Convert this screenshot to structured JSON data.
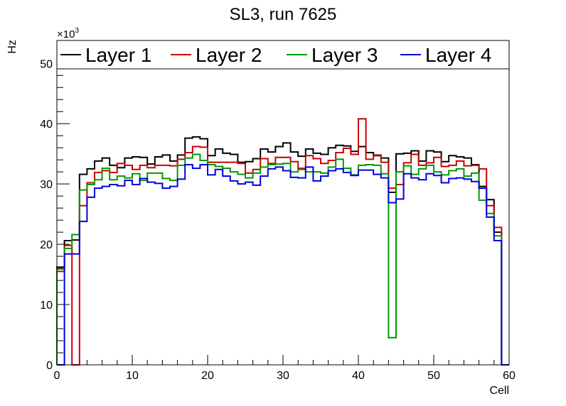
{
  "chart_data": {
    "type": "line",
    "style": "step-histogram",
    "title": "SL3, run 7625",
    "xlabel": "Cell",
    "ylabel": "Hz",
    "y_multiplier": "×10",
    "y_multiplier_exp": "3",
    "xlim": [
      0,
      60
    ],
    "ylim": [
      0,
      53.8
    ],
    "x_ticks": [
      "0",
      "10",
      "20",
      "30",
      "40",
      "50",
      "60"
    ],
    "y_ticks": [
      "0",
      "10",
      "20",
      "30",
      "40",
      "50"
    ],
    "grid": false,
    "legend_placement": "top",
    "series": [
      {
        "name": "Layer 1",
        "color": "#000000",
        "values": [
          16.2,
          20.6,
          20.7,
          31.6,
          32.5,
          33.8,
          34.3,
          33.1,
          32.7,
          34.3,
          34.5,
          34.4,
          33.3,
          34.5,
          34.8,
          33.8,
          34.8,
          37.6,
          37.8,
          37.5,
          34.7,
          35.8,
          35.1,
          34.9,
          33.6,
          33.7,
          34.2,
          35.8,
          35.3,
          36.2,
          36.8,
          35.3,
          34.6,
          35.8,
          35.1,
          34.9,
          36.0,
          36.4,
          36.3,
          35.4,
          36.2,
          35.2,
          34.7,
          34.3,
          28.6,
          35.0,
          35.1,
          35.5,
          33.8,
          35.5,
          35.3,
          33.7,
          34.7,
          34.5,
          34.3,
          33.2,
          29.6,
          27.4,
          22.0,
          0
        ]
      },
      {
        "name": "Layer 2",
        "color": "#cc0000",
        "values": [
          15.5,
          19.8,
          0,
          26.4,
          30.2,
          31.9,
          32.2,
          31.9,
          33.4,
          33.1,
          32.4,
          33.1,
          32.7,
          33.1,
          33.1,
          33.0,
          34.1,
          35.2,
          36.2,
          36.1,
          33.6,
          33.6,
          33.6,
          33.6,
          33.4,
          31.8,
          32.4,
          34.2,
          33.4,
          34.4,
          34.4,
          33.7,
          32.6,
          34.7,
          34.2,
          33.4,
          33.9,
          35.2,
          35.9,
          34.9,
          40.8,
          34.1,
          34.8,
          33.6,
          29.3,
          29.9,
          33.5,
          34.9,
          33.1,
          33.5,
          34.4,
          32.9,
          33.1,
          33.8,
          33.0,
          33.1,
          32.5,
          26.4,
          22.8,
          0
        ]
      },
      {
        "name": "Layer 3",
        "color": "#009900",
        "values": [
          15.9,
          19.3,
          21.6,
          29.0,
          29.9,
          30.7,
          32.6,
          30.7,
          31.3,
          31.0,
          31.7,
          30.6,
          31.8,
          31.8,
          30.9,
          30.6,
          33.1,
          34.3,
          34.9,
          33.9,
          33.2,
          32.9,
          32.6,
          32.0,
          31.6,
          31.0,
          31.8,
          32.8,
          33.2,
          33.3,
          33.4,
          32.0,
          32.4,
          32.0,
          32.0,
          31.8,
          32.8,
          34.1,
          32.6,
          31.5,
          33.1,
          33.2,
          33.1,
          31.7,
          4.5,
          32.0,
          33.0,
          31.6,
          32.5,
          33.1,
          32.0,
          31.5,
          32.2,
          32.5,
          31.3,
          31.8,
          27.3,
          25.1,
          21.4,
          0
        ]
      },
      {
        "name": "Layer 4",
        "color": "#0000dd",
        "values": [
          0,
          18.4,
          18.4,
          23.8,
          27.8,
          29.3,
          29.6,
          29.9,
          29.7,
          30.6,
          29.9,
          30.9,
          30.3,
          30.1,
          29.3,
          29.6,
          30.8,
          33.2,
          32.6,
          33.2,
          31.5,
          32.4,
          31.3,
          30.5,
          30.0,
          30.3,
          29.8,
          31.3,
          32.5,
          32.8,
          32.2,
          31.1,
          31.0,
          32.8,
          30.5,
          31.3,
          32.2,
          32.5,
          31.9,
          31.4,
          32.3,
          32.3,
          31.6,
          31.0,
          26.9,
          27.5,
          31.7,
          31.0,
          30.7,
          31.7,
          31.4,
          30.2,
          30.9,
          31.0,
          30.8,
          30.4,
          29.3,
          24.5,
          20.6,
          0
        ]
      }
    ]
  }
}
